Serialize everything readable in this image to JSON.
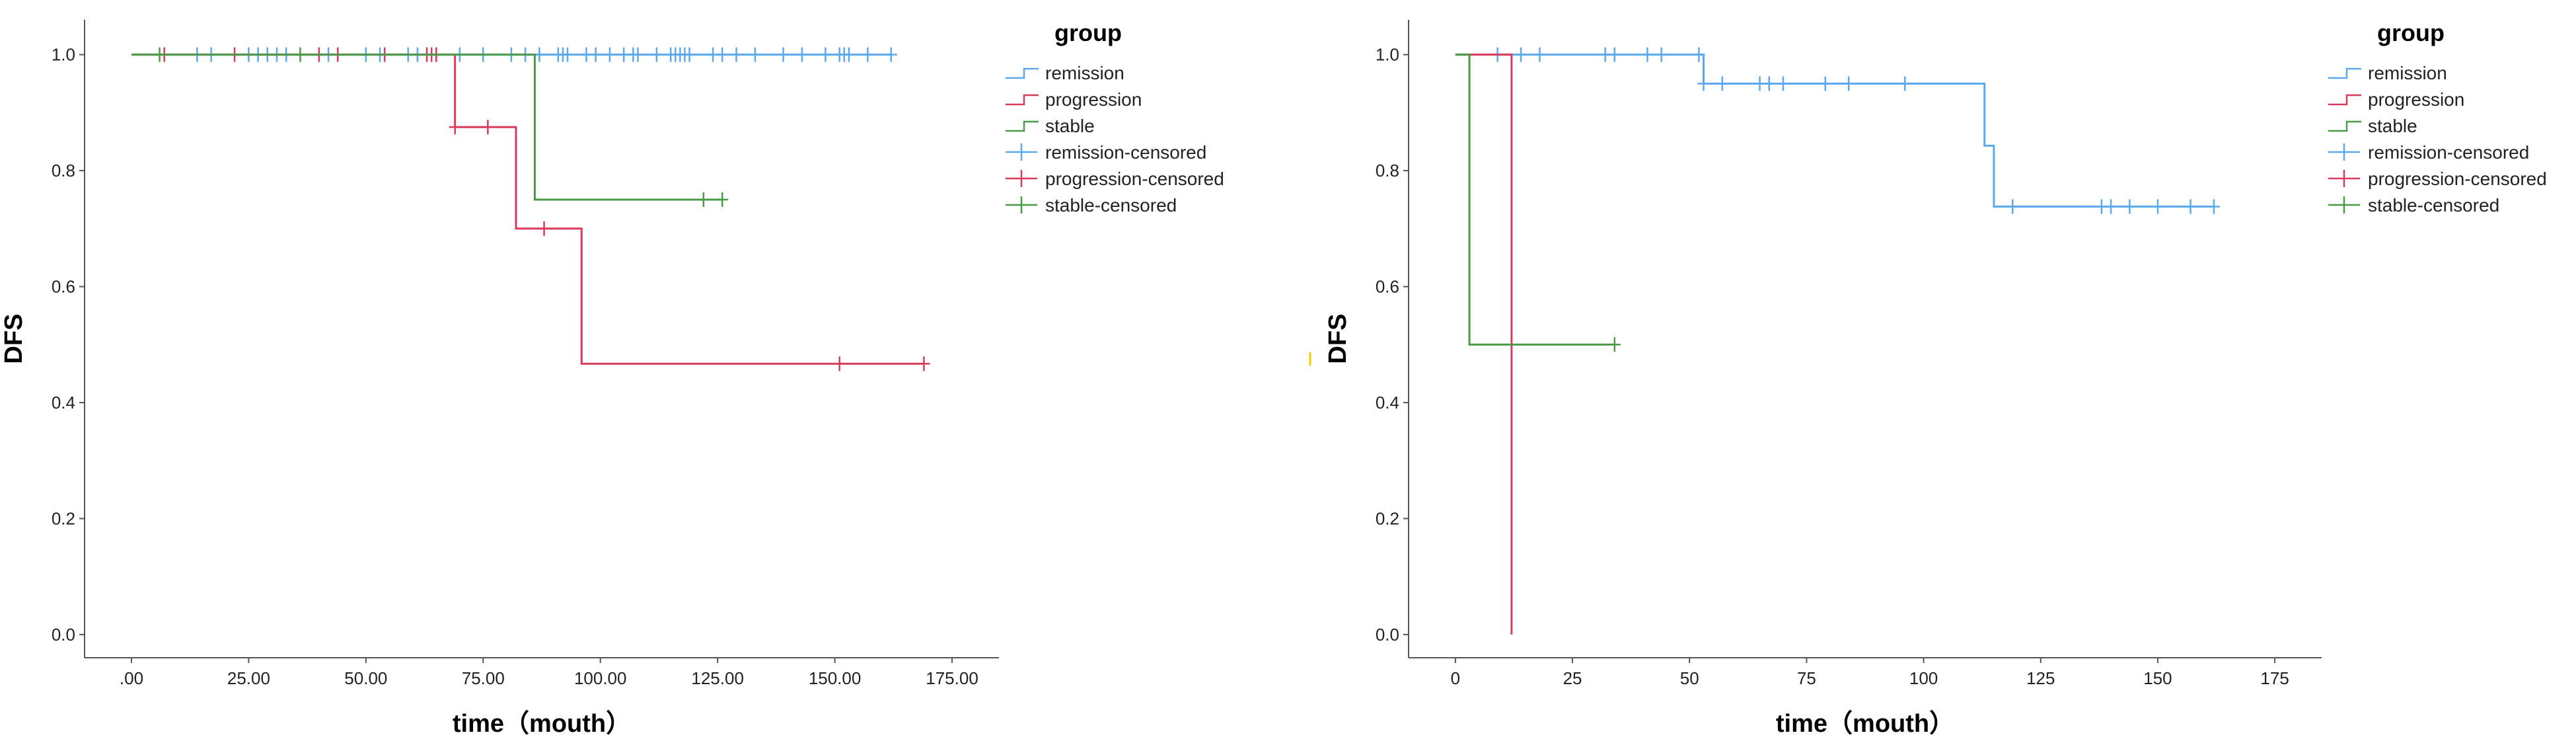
{
  "chart_data": [
    {
      "type": "line",
      "subtype": "kaplan-meier",
      "xlabel": "time（mouth）",
      "ylabel": "DFS",
      "xlim": [
        -10,
        185
      ],
      "ylim": [
        -0.04,
        1.06
      ],
      "xticks": [
        0,
        25,
        50,
        75,
        100,
        125,
        150,
        175
      ],
      "xtick_labels": [
        ".00",
        "25.00",
        "50.00",
        "75.00",
        "100.00",
        "125.00",
        "150.00",
        "175.00"
      ],
      "yticks": [
        0,
        0.2,
        0.4,
        0.6,
        0.8,
        1.0
      ],
      "ytick_labels": [
        "0.0",
        "0.2",
        "0.4",
        "0.6",
        "0.8",
        "1.0"
      ],
      "legend": {
        "title": "group",
        "position": "right",
        "entries": [
          {
            "label": "remission",
            "series": "remission",
            "kind": "line"
          },
          {
            "label": "progression",
            "series": "progression",
            "kind": "line"
          },
          {
            "label": "stable",
            "series": "stable",
            "kind": "line"
          },
          {
            "label": "remission-censored",
            "series": "remission",
            "kind": "censor"
          },
          {
            "label": "progression-censored",
            "series": "progression",
            "kind": "censor"
          },
          {
            "label": "stable-censored",
            "series": "stable",
            "kind": "censor"
          }
        ]
      },
      "series": [
        {
          "name": "remission",
          "color": "#5aa9ee",
          "steps": [
            [
              0,
              1.0
            ],
            [
              162,
              1.0
            ]
          ],
          "censored": [
            [
              14,
              1.0
            ],
            [
              17,
              1.0
            ],
            [
              25,
              1.0
            ],
            [
              27,
              1.0
            ],
            [
              29,
              1.0
            ],
            [
              31,
              1.0
            ],
            [
              33,
              1.0
            ],
            [
              42,
              1.0
            ],
            [
              50,
              1.0
            ],
            [
              53,
              1.0
            ],
            [
              59,
              1.0
            ],
            [
              61,
              1.0
            ],
            [
              63,
              1.0
            ],
            [
              65,
              1.0
            ],
            [
              70,
              1.0
            ],
            [
              75,
              1.0
            ],
            [
              81,
              1.0
            ],
            [
              84,
              1.0
            ],
            [
              87,
              1.0
            ],
            [
              91,
              1.0
            ],
            [
              92,
              1.0
            ],
            [
              93,
              1.0
            ],
            [
              97,
              1.0
            ],
            [
              99,
              1.0
            ],
            [
              102,
              1.0
            ],
            [
              105,
              1.0
            ],
            [
              107,
              1.0
            ],
            [
              108,
              1.0
            ],
            [
              112,
              1.0
            ],
            [
              115,
              1.0
            ],
            [
              116,
              1.0
            ],
            [
              117,
              1.0
            ],
            [
              118,
              1.0
            ],
            [
              119,
              1.0
            ],
            [
              124,
              1.0
            ],
            [
              126,
              1.0
            ],
            [
              129,
              1.0
            ],
            [
              133,
              1.0
            ],
            [
              139,
              1.0
            ],
            [
              143,
              1.0
            ],
            [
              148,
              1.0
            ],
            [
              151,
              1.0
            ],
            [
              152,
              1.0
            ],
            [
              153,
              1.0
            ],
            [
              157,
              1.0
            ],
            [
              162,
              1.0
            ]
          ]
        },
        {
          "name": "progression",
          "color": "#dc3a5a",
          "steps": [
            [
              0,
              1.0
            ],
            [
              69,
              1.0
            ],
            [
              69,
              0.875
            ],
            [
              82,
              0.875
            ],
            [
              82,
              0.7
            ],
            [
              96,
              0.7
            ],
            [
              96,
              0.467
            ],
            [
              169,
              0.467
            ]
          ],
          "censored": [
            [
              7,
              1.0
            ],
            [
              22,
              1.0
            ],
            [
              40,
              1.0
            ],
            [
              44,
              1.0
            ],
            [
              54,
              1.0
            ],
            [
              63,
              1.0
            ],
            [
              64,
              1.0
            ],
            [
              65,
              1.0
            ],
            [
              69,
              0.875
            ],
            [
              76,
              0.875
            ],
            [
              88,
              0.7
            ],
            [
              151,
              0.467
            ],
            [
              169,
              0.467
            ]
          ]
        },
        {
          "name": "stable",
          "color": "#4a9a46",
          "steps": [
            [
              0,
              1.0
            ],
            [
              86,
              1.0
            ],
            [
              86,
              0.75
            ],
            [
              126,
              0.75
            ]
          ],
          "censored": [
            [
              6,
              1.0
            ],
            [
              36,
              1.0
            ],
            [
              122,
              0.75
            ],
            [
              126,
              0.75
            ]
          ]
        }
      ]
    },
    {
      "type": "line",
      "subtype": "kaplan-meier",
      "xlabel": "time（mouth）",
      "ylabel": "DFS",
      "xlim": [
        -10,
        185
      ],
      "ylim": [
        -0.04,
        1.06
      ],
      "xticks": [
        0,
        25,
        50,
        75,
        100,
        125,
        150,
        175
      ],
      "xtick_labels": [
        "0",
        "25",
        "50",
        "75",
        "100",
        "125",
        "150",
        "175"
      ],
      "yticks": [
        0,
        0.2,
        0.4,
        0.6,
        0.8,
        1.0
      ],
      "ytick_labels": [
        "0.0",
        "0.2",
        "0.4",
        "0.6",
        "0.8",
        "1.0"
      ],
      "legend": {
        "title": "group",
        "position": "right",
        "entries": [
          {
            "label": "remission",
            "series": "remission",
            "kind": "line"
          },
          {
            "label": "progression",
            "series": "progression",
            "kind": "line"
          },
          {
            "label": "stable",
            "series": "stable",
            "kind": "line"
          },
          {
            "label": "remission-censored",
            "series": "remission",
            "kind": "censor"
          },
          {
            "label": "progression-censored",
            "series": "progression",
            "kind": "censor"
          },
          {
            "label": "stable-censored",
            "series": "stable",
            "kind": "censor"
          }
        ]
      },
      "series": [
        {
          "name": "remission",
          "color": "#5aa9ee",
          "steps": [
            [
              0,
              1.0
            ],
            [
              53,
              1.0
            ],
            [
              53,
              0.95
            ],
            [
              113,
              0.95
            ],
            [
              113,
              0.843
            ],
            [
              115,
              0.843
            ],
            [
              115,
              0.738
            ],
            [
              162,
              0.738
            ]
          ],
          "censored": [
            [
              9,
              1.0
            ],
            [
              14,
              1.0
            ],
            [
              18,
              1.0
            ],
            [
              32,
              1.0
            ],
            [
              34,
              1.0
            ],
            [
              41,
              1.0
            ],
            [
              44,
              1.0
            ],
            [
              52,
              1.0
            ],
            [
              53,
              0.95
            ],
            [
              57,
              0.95
            ],
            [
              65,
              0.95
            ],
            [
              67,
              0.95
            ],
            [
              70,
              0.95
            ],
            [
              79,
              0.95
            ],
            [
              84,
              0.95
            ],
            [
              96,
              0.95
            ],
            [
              119,
              0.738
            ],
            [
              138,
              0.738
            ],
            [
              140,
              0.738
            ],
            [
              144,
              0.738
            ],
            [
              150,
              0.738
            ],
            [
              157,
              0.738
            ],
            [
              162,
              0.738
            ]
          ]
        },
        {
          "name": "progression",
          "color": "#dc3a5a",
          "steps": [
            [
              0,
              1.0
            ],
            [
              12,
              1.0
            ],
            [
              12,
              0.0
            ]
          ],
          "censored": []
        },
        {
          "name": "stable",
          "color": "#4a9a46",
          "steps": [
            [
              0,
              1.0
            ],
            [
              3,
              1.0
            ],
            [
              3,
              0.5
            ],
            [
              34,
              0.5
            ]
          ],
          "censored": [
            [
              34,
              0.5
            ]
          ]
        }
      ]
    }
  ]
}
